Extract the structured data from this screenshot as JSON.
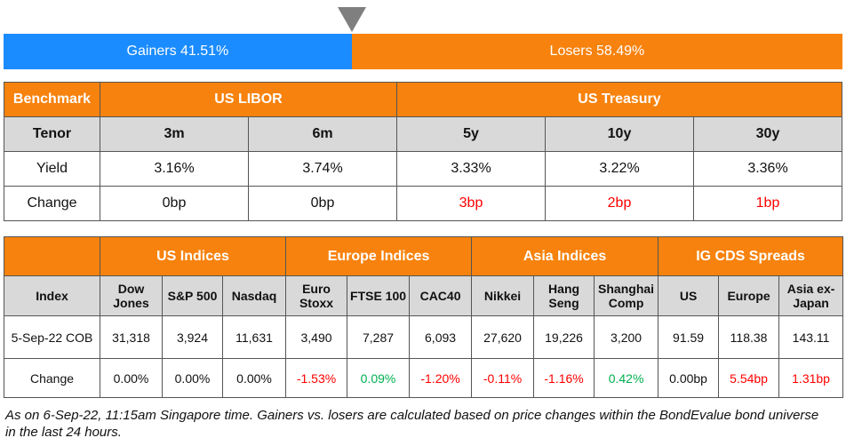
{
  "sentiment": {
    "gainers_label": "Gainers 41.51%",
    "losers_label": "Losers 58.49%",
    "gainers_pct": 41.51,
    "losers_pct": 58.49,
    "marker_icon": "triangle-down-icon",
    "colors": {
      "gainers": "#1a8cff",
      "losers": "#f7820d"
    }
  },
  "rates": {
    "header": {
      "benchmark": "Benchmark",
      "libor": "US LIBOR",
      "treasury": "US Treasury"
    },
    "tenor": {
      "label": "Tenor",
      "values": [
        "3m",
        "6m",
        "5y",
        "10y",
        "30y"
      ]
    },
    "yield": {
      "label": "Yield",
      "values": [
        "3.16%",
        "3.74%",
        "3.33%",
        "3.22%",
        "3.36%"
      ]
    },
    "change": {
      "label": "Change",
      "values": [
        "0bp",
        "0bp",
        "3bp",
        "2bp",
        "1bp"
      ]
    }
  },
  "indices": {
    "groups": [
      "US Indices",
      "Europe Indices",
      "Asia Indices",
      "IG CDS Spreads"
    ],
    "index_label": "Index",
    "columns": [
      "Dow Jones",
      "S&P 500",
      "Nasdaq",
      "Euro Stoxx",
      "FTSE 100",
      "CAC40",
      "Nikkei",
      "Hang Seng",
      "Shanghai Comp",
      "US",
      "Europe",
      "Asia ex-Japan"
    ],
    "values_label": "5-Sep-22 COB",
    "values": [
      "31,318",
      "3,924",
      "11,631",
      "3,490",
      "7,287",
      "6,093",
      "27,620",
      "19,226",
      "3,200",
      "91.59",
      "118.38",
      "143.11"
    ],
    "change_label": "Change",
    "changes": [
      "0.00%",
      "0.00%",
      "0.00%",
      "-1.53%",
      "0.09%",
      "-1.20%",
      "-0.11%",
      "-1.16%",
      "0.42%",
      "0.00bp",
      "5.54bp",
      "1.31bp"
    ]
  },
  "footnote": "As on 6-Sep-22, 11:15am Singapore time. Gainers vs. losers are calculated based on price changes within the BondEvalue bond universe in the last 24 hours."
}
